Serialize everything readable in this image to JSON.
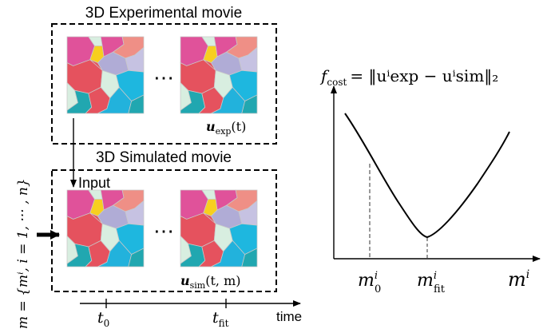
{
  "top_panel": {
    "title": "3D Experimental movie",
    "ellipsis": "⋯",
    "label_main": "u",
    "label_sub": "exp",
    "label_arg": "(t)"
  },
  "bottom_panel": {
    "title": "3D Simulated movie",
    "input_label": "Input",
    "ellipsis": "⋯",
    "label_main": "u",
    "label_sub": "sim",
    "label_arg": "(t, m)"
  },
  "parameter_vector": {
    "text": "m = {mⁱ, i = 1, ··· , n}"
  },
  "time_axis": {
    "label": "time",
    "tick_1_main": "t",
    "tick_1_sub": "0",
    "tick_2_main": "t",
    "tick_2_sub": "fit"
  },
  "cost_plot": {
    "formula_lhs_main": "f",
    "formula_lhs_sub": "cost",
    "formula_rhs": "= ‖uⁱexp − uⁱsim‖₂",
    "x_axis_label_main": "m",
    "x_axis_label_sup": "i",
    "tick_m0_main": "m",
    "tick_m0_sup": "i",
    "tick_m0_sub": "0",
    "tick_mfit_main": "m",
    "tick_mfit_sup": "i",
    "tick_mfit_sub": "fit"
  },
  "colors": {
    "cell_pink": "#e0529a",
    "cell_red": "#e5525e",
    "cell_lavender": "#b0acd6",
    "cell_cyan": "#1eb7df",
    "cell_teal": "#21a7b0",
    "cell_salmon": "#ef8f86",
    "cell_yellow": "#f7cf1f",
    "cell_mint": "#d8eee0",
    "cell_bg": "#e8f3ee"
  }
}
